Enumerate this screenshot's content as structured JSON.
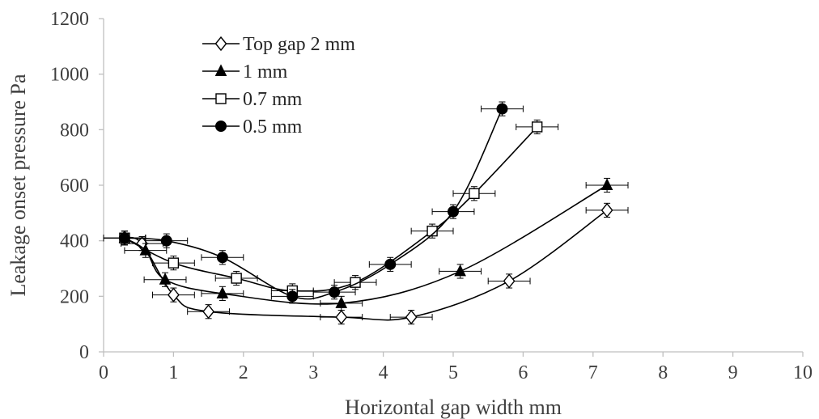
{
  "chart_data": {
    "type": "scatter",
    "title": "",
    "xlabel": "Horizontal gap width mm",
    "ylabel": "Leakage onset pressure Pa",
    "xlim": [
      0,
      10
    ],
    "ylim": [
      0,
      1200
    ],
    "x_ticks": [
      0,
      1,
      2,
      3,
      4,
      5,
      6,
      7,
      8,
      9,
      10
    ],
    "y_ticks": [
      0,
      200,
      400,
      600,
      800,
      1000,
      1200
    ],
    "x_tick_labels": [
      "0",
      "1",
      "2",
      "3",
      "4",
      "5",
      "6",
      "7",
      "8",
      "9",
      "10"
    ],
    "y_tick_labels": [
      "0",
      "200",
      "400",
      "600",
      "800",
      "1000",
      "1200"
    ],
    "grid": false,
    "legend_position": "top-left",
    "lines": "smoothed",
    "error_bars": "x and y",
    "series": [
      {
        "name": "Top gap 2 mm",
        "marker": "diamond-open",
        "x": [
          0.3,
          0.55,
          1.0,
          1.5,
          3.4,
          4.4,
          5.8,
          7.2
        ],
        "y": [
          410,
          390,
          205,
          145,
          125,
          125,
          255,
          510
        ],
        "x_err": [
          0.3,
          0.3,
          0.3,
          0.3,
          0.3,
          0.3,
          0.3,
          0.3
        ],
        "y_err": [
          25,
          25,
          25,
          25,
          25,
          25,
          25,
          25
        ]
      },
      {
        "name": "1 mm",
        "marker": "triangle-filled",
        "x": [
          0.3,
          0.6,
          0.88,
          1.7,
          3.4,
          5.1,
          7.2
        ],
        "y": [
          410,
          365,
          260,
          210,
          175,
          290,
          600
        ],
        "x_err": [
          0.3,
          0.3,
          0.3,
          0.3,
          0.3,
          0.3,
          0.3
        ],
        "y_err": [
          25,
          25,
          25,
          25,
          25,
          25,
          25
        ]
      },
      {
        "name": "0.7 mm",
        "marker": "square-open",
        "x": [
          0.3,
          1.0,
          1.9,
          2.7,
          3.6,
          4.7,
          5.3,
          6.2
        ],
        "y": [
          410,
          320,
          265,
          220,
          250,
          435,
          570,
          810
        ],
        "x_err": [
          0.3,
          0.3,
          0.3,
          0.3,
          0.3,
          0.3,
          0.3,
          0.3
        ],
        "y_err": [
          25,
          25,
          25,
          25,
          25,
          25,
          25,
          25
        ]
      },
      {
        "name": "0.5 mm",
        "marker": "circle-filled",
        "x": [
          0.3,
          0.9,
          1.7,
          2.7,
          3.3,
          4.1,
          5.0,
          5.7
        ],
        "y": [
          410,
          400,
          340,
          200,
          215,
          315,
          505,
          875
        ],
        "x_err": [
          0.3,
          0.3,
          0.3,
          0.3,
          0.3,
          0.3,
          0.3,
          0.3
        ],
        "y_err": [
          25,
          25,
          25,
          25,
          25,
          25,
          25,
          25
        ]
      }
    ]
  }
}
